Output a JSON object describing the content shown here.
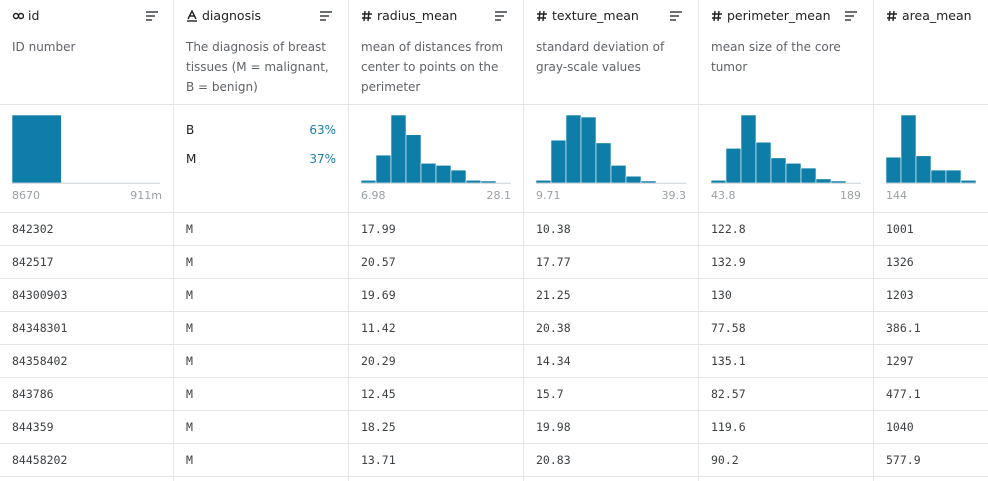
{
  "columns": [
    {
      "name": "id",
      "description": "ID number",
      "histogram": {
        "bars": [
          100,
          1,
          1
        ],
        "min": "8670",
        "max": "911m"
      }
    },
    {
      "name": "diagnosis",
      "description": "The diagnosis of breast tissues (M = malignant, B = benign)",
      "categories": [
        {
          "label": "B",
          "share": "63%"
        },
        {
          "label": "M",
          "share": "37%"
        }
      ]
    },
    {
      "name": "radius_mean",
      "description": "mean of distances from center to points on the perimeter",
      "histogram": {
        "bars": [
          4,
          41,
          100,
          71,
          29,
          26,
          19,
          4,
          3,
          1
        ],
        "min": "6.98",
        "max": "28.1"
      }
    },
    {
      "name": "texture_mean",
      "description": "standard deviation of gray-scale values",
      "histogram": {
        "bars": [
          4,
          63,
          100,
          97,
          59,
          26,
          10,
          3,
          1,
          1
        ],
        "min": "9.71",
        "max": "39.3"
      }
    },
    {
      "name": "perimeter_mean",
      "description": "mean size of the core tumor",
      "histogram": {
        "bars": [
          4,
          51,
          100,
          60,
          37,
          29,
          22,
          6,
          3,
          1
        ],
        "min": "43.8",
        "max": "189"
      }
    },
    {
      "name": "area_mean",
      "description": "",
      "histogram": {
        "bars": [
          38,
          100,
          40,
          19,
          19,
          4
        ],
        "min": "144"
      }
    }
  ],
  "rows": [
    [
      "842302",
      "M",
      "17.99",
      "10.38",
      "122.8",
      "1001"
    ],
    [
      "842517",
      "M",
      "20.57",
      "17.77",
      "132.9",
      "1326"
    ],
    [
      "84300903",
      "M",
      "19.69",
      "21.25",
      "130",
      "1203"
    ],
    [
      "84348301",
      "M",
      "11.42",
      "20.38",
      "77.58",
      "386.1"
    ],
    [
      "84358402",
      "M",
      "20.29",
      "14.34",
      "135.1",
      "1297"
    ],
    [
      "843786",
      "M",
      "12.45",
      "15.7",
      "82.57",
      "477.1"
    ],
    [
      "844359",
      "M",
      "18.25",
      "19.98",
      "119.6",
      "1040"
    ],
    [
      "84458202",
      "M",
      "13.71",
      "20.83",
      "90.2",
      "577.9"
    ]
  ]
}
